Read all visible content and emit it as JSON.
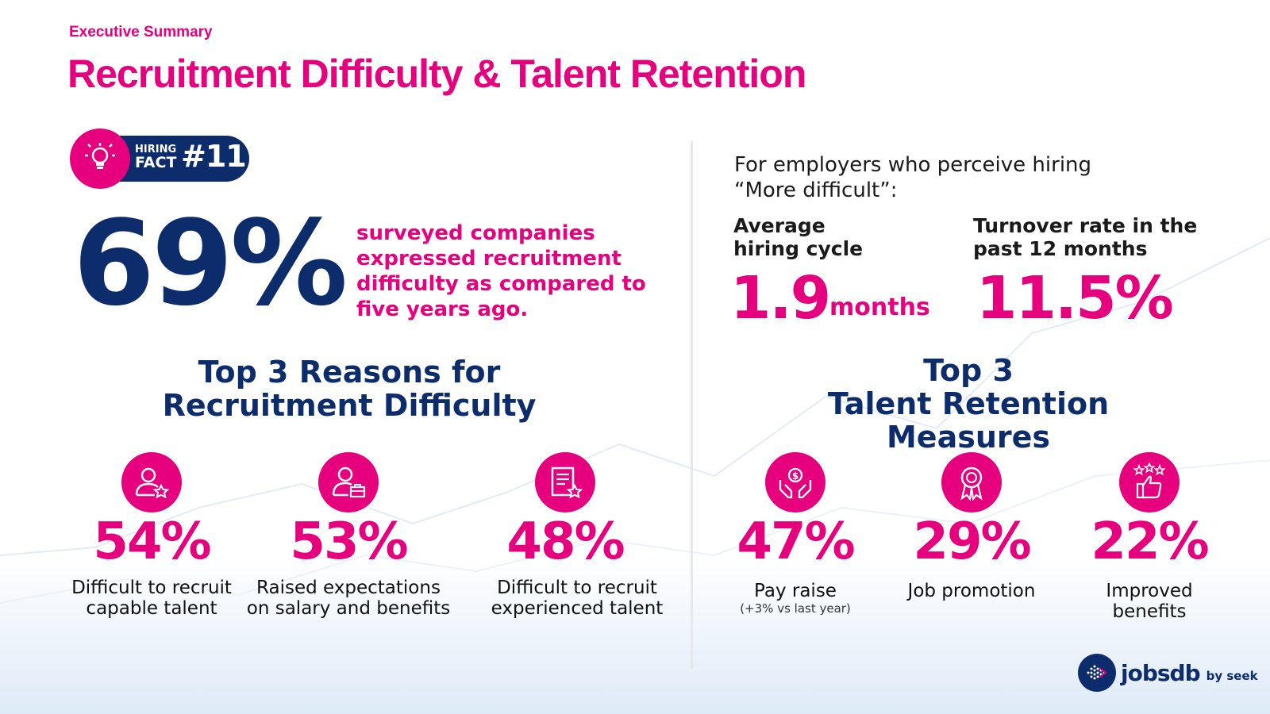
{
  "header": {
    "kicker": "Executive Summary",
    "title": "Recruitment Difficulty & Talent Retention"
  },
  "hiring_fact": {
    "line1": "HIRING",
    "line2": "FACT",
    "number": "#11",
    "icon": "lightbulb-icon"
  },
  "headline": {
    "percent": "69%",
    "description": "surveyed companies expressed recruitment difficulty as compared to five years ago."
  },
  "reasons": {
    "title_line1": "Top 3 Reasons for",
    "title_line2": "Recruitment Difficulty",
    "items": [
      {
        "percent": "54%",
        "label_line1": "Difficult to recruit",
        "label_line2": "capable talent",
        "icon": "user-star-icon"
      },
      {
        "percent": "53%",
        "label_line1": "Raised expectations",
        "label_line2": "on salary and benefits",
        "icon": "user-briefcase-icon"
      },
      {
        "percent": "48%",
        "label_line1": "Difficult to recruit",
        "label_line2": "experienced talent",
        "icon": "document-star-icon"
      }
    ]
  },
  "employers": {
    "intro_line1": "For employers who perceive hiring",
    "intro_line2": "“More difficult”:",
    "metric1": {
      "label_line1": "Average",
      "label_line2": "hiring cycle",
      "value": "1.9",
      "unit": "months"
    },
    "metric2": {
      "label_line1": "Turnover rate in the",
      "label_line2": "past 12 months",
      "value": "11.5%"
    }
  },
  "retention": {
    "title_line1": "Top 3",
    "title_line2": "Talent Retention Measures",
    "items": [
      {
        "percent": "47%",
        "label_line1": "Pay raise",
        "label_line2": "",
        "sub": "(+3% vs last year)",
        "icon": "hands-coin-icon"
      },
      {
        "percent": "29%",
        "label_line1": "Job promotion",
        "label_line2": "",
        "sub": "",
        "icon": "award-ribbon-icon"
      },
      {
        "percent": "22%",
        "label_line1": "Improved",
        "label_line2": "benefits",
        "sub": "",
        "icon": "thumbs-up-stars-icon"
      }
    ]
  },
  "brand": {
    "name": "jobsdb",
    "by": "by seek"
  },
  "colors": {
    "accent": "#e6007e",
    "navy": "#0d2c6c",
    "text": "#1a1a1a"
  }
}
